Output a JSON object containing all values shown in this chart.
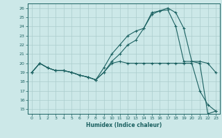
{
  "xlabel": "Humidex (Indice chaleur)",
  "bg_color": "#cce8e8",
  "grid_color": "#aacccc",
  "line_color": "#1a6060",
  "xlim": [
    -0.5,
    23.5
  ],
  "ylim": [
    14.5,
    26.5
  ],
  "xticks": [
    0,
    1,
    2,
    3,
    4,
    5,
    6,
    7,
    8,
    9,
    10,
    11,
    12,
    13,
    14,
    15,
    16,
    17,
    18,
    19,
    20,
    21,
    22,
    23
  ],
  "yticks": [
    15,
    16,
    17,
    18,
    19,
    20,
    21,
    22,
    23,
    24,
    25,
    26
  ],
  "line1_x": [
    0,
    1,
    2,
    3,
    4,
    5,
    6,
    7,
    8,
    9,
    10,
    11,
    12,
    13,
    14,
    15,
    16,
    17,
    18,
    19,
    20,
    21,
    22,
    23
  ],
  "line1_y": [
    19.0,
    20.0,
    19.5,
    19.2,
    19.2,
    19.0,
    18.7,
    18.5,
    18.2,
    19.0,
    20.0,
    20.2,
    20.0,
    20.0,
    20.0,
    20.0,
    20.0,
    20.0,
    20.0,
    20.0,
    20.0,
    17.0,
    15.5,
    14.8
  ],
  "line2_x": [
    0,
    1,
    2,
    3,
    4,
    5,
    6,
    7,
    8,
    9,
    10,
    11,
    12,
    13,
    14,
    15,
    16,
    17,
    18,
    19,
    20,
    21,
    22,
    23
  ],
  "line2_y": [
    19.0,
    20.0,
    19.5,
    19.2,
    19.2,
    19.0,
    18.7,
    18.5,
    18.2,
    19.5,
    21.0,
    22.0,
    23.0,
    23.5,
    23.8,
    25.3,
    25.7,
    26.0,
    25.5,
    23.8,
    20.2,
    20.2,
    20.0,
    19.0
  ],
  "line3_x": [
    0,
    1,
    2,
    3,
    4,
    5,
    6,
    7,
    8,
    9,
    10,
    11,
    12,
    13,
    14,
    15,
    16,
    17,
    18,
    19,
    20,
    21,
    22,
    23
  ],
  "line3_y": [
    19.0,
    20.0,
    19.5,
    19.2,
    19.2,
    19.0,
    18.7,
    18.5,
    18.2,
    19.0,
    20.2,
    21.0,
    22.0,
    22.5,
    23.8,
    25.5,
    25.7,
    25.8,
    24.0,
    20.2,
    20.2,
    20.0,
    14.5,
    14.8
  ]
}
